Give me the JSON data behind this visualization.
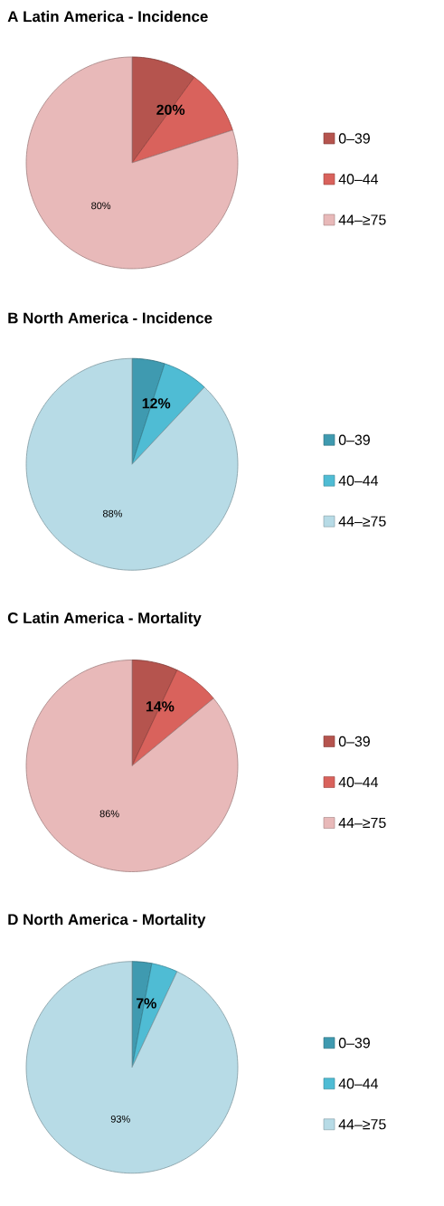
{
  "chart_data": [
    {
      "type": "pie",
      "title": "A  Latin America - Incidence",
      "categories": [
        "0–39",
        "40–44",
        "44–≥75"
      ],
      "values": [
        10,
        10,
        80
      ],
      "colors": [
        "#b5544e",
        "#d9625c",
        "#e8b9b9"
      ],
      "annotations": [
        "20%",
        "80%"
      ],
      "legend": "right"
    },
    {
      "type": "pie",
      "title": "B  North America - Incidence",
      "categories": [
        "0–39",
        "40–44",
        "44–≥75"
      ],
      "values": [
        5,
        7,
        88
      ],
      "colors": [
        "#3f9ab0",
        "#4fbcd4",
        "#b7dbe6"
      ],
      "annotations": [
        "12%",
        "88%"
      ],
      "legend": "right"
    },
    {
      "type": "pie",
      "title": "C  Latin America - Mortality",
      "categories": [
        "0–39",
        "40–44",
        "44–≥75"
      ],
      "values": [
        7,
        7,
        86
      ],
      "colors": [
        "#b5544e",
        "#d9625c",
        "#e8b9b9"
      ],
      "annotations": [
        "14%",
        "86%"
      ],
      "legend": "right"
    },
    {
      "type": "pie",
      "title": "D  North America - Mortality",
      "categories": [
        "0–39",
        "40–44",
        "44–≥75"
      ],
      "values": [
        3,
        4,
        93
      ],
      "colors": [
        "#3f9ab0",
        "#4fbcd4",
        "#b7dbe6"
      ],
      "annotations": [
        "7%",
        "93%"
      ],
      "legend": "right"
    }
  ]
}
